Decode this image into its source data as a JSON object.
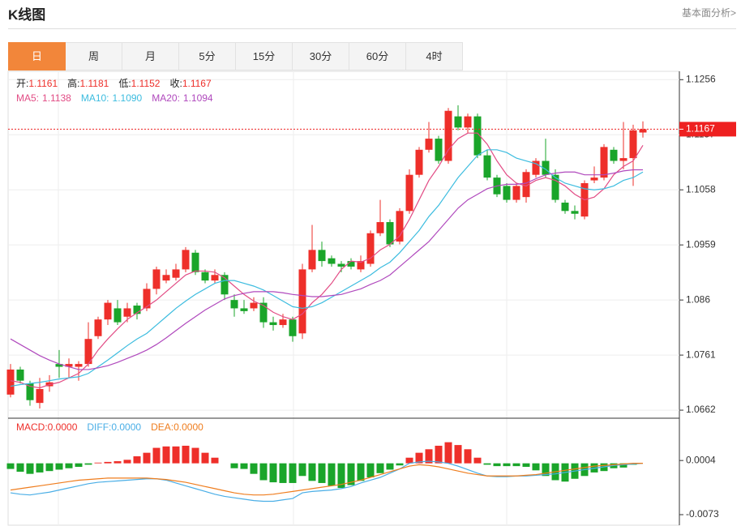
{
  "header": {
    "title": "K线图",
    "link": "基本面分析>"
  },
  "tabs": [
    "日",
    "周",
    "月",
    "5分",
    "15分",
    "30分",
    "60分",
    "4时"
  ],
  "active_tab": 0,
  "chart_data": [
    {
      "type": "candlestick",
      "info": [
        {
          "label": "开:",
          "value": "1.1161"
        },
        {
          "label": "高:",
          "value": "1.1181"
        },
        {
          "label": "低:",
          "value": "1.1152"
        },
        {
          "label": "收:",
          "value": "1.1167"
        }
      ],
      "up_color": "#ee2f2a",
      "down_color": "#1aa52a",
      "open": [
        1.069,
        1.0735,
        1.071,
        1.0675,
        1.0705,
        1.0745,
        1.074,
        1.074,
        1.0745,
        1.0795,
        1.0825,
        1.0845,
        1.083,
        1.085,
        1.0845,
        1.088,
        1.0895,
        1.09,
        1.0915,
        1.0945,
        1.091,
        1.0895,
        1.0905,
        1.086,
        1.0845,
        1.0845,
        1.0855,
        1.082,
        1.0815,
        1.0825,
        1.08,
        1.0915,
        1.095,
        1.0935,
        1.0925,
        1.093,
        1.0915,
        1.0925,
        1.098,
        1.1,
        1.0965,
        1.102,
        1.1085,
        1.113,
        1.115,
        1.111,
        1.119,
        1.117,
        1.119,
        1.112,
        1.108,
        1.1065,
        1.104,
        1.1045,
        1.1085,
        1.111,
        1.1085,
        1.1035,
        1.102,
        1.101,
        1.1075,
        1.108,
        1.113,
        1.111,
        1.1115,
        1.1161
      ],
      "close": [
        1.0735,
        1.0715,
        1.068,
        1.07,
        1.0712,
        1.074,
        1.0745,
        1.0745,
        1.079,
        1.0825,
        1.0855,
        1.082,
        1.0845,
        1.0835,
        1.088,
        1.0915,
        1.0905,
        1.0915,
        1.095,
        1.091,
        1.0895,
        1.0905,
        1.087,
        1.0845,
        1.084,
        1.0855,
        1.082,
        1.0815,
        1.0825,
        1.0795,
        1.0915,
        1.095,
        1.093,
        1.0925,
        1.092,
        1.092,
        1.093,
        1.098,
        1.1,
        1.096,
        1.102,
        1.1085,
        1.113,
        1.115,
        1.111,
        1.12,
        1.117,
        1.119,
        1.112,
        1.108,
        1.105,
        1.104,
        1.1065,
        1.109,
        1.111,
        1.1085,
        1.104,
        1.102,
        1.1015,
        1.107,
        1.108,
        1.1135,
        1.111,
        1.1115,
        1.1165,
        1.1167
      ],
      "high": [
        1.0745,
        1.074,
        1.0715,
        1.072,
        1.0725,
        1.077,
        1.0755,
        1.075,
        1.082,
        1.083,
        1.086,
        1.086,
        1.0855,
        1.0855,
        1.089,
        1.092,
        1.0915,
        1.0925,
        1.0955,
        1.095,
        1.0915,
        1.0915,
        1.091,
        1.087,
        1.086,
        1.0865,
        1.0865,
        1.083,
        1.0835,
        1.083,
        1.0925,
        1.0995,
        1.0965,
        1.094,
        1.093,
        1.0935,
        1.094,
        1.0985,
        1.104,
        1.1005,
        1.1025,
        1.1095,
        1.1135,
        1.118,
        1.1155,
        1.1205,
        1.121,
        1.1195,
        1.1195,
        1.113,
        1.1085,
        1.107,
        1.107,
        1.1095,
        1.1115,
        1.115,
        1.1095,
        1.104,
        1.103,
        1.1075,
        1.11,
        1.114,
        1.1135,
        1.118,
        1.1175,
        1.1181
      ],
      "low": [
        1.0685,
        1.071,
        1.067,
        1.0665,
        1.0695,
        1.072,
        1.072,
        1.0715,
        1.074,
        1.079,
        1.0815,
        1.0815,
        1.082,
        1.0825,
        1.084,
        1.087,
        1.089,
        1.0895,
        1.091,
        1.0905,
        1.089,
        1.089,
        1.086,
        1.083,
        1.0835,
        1.084,
        1.081,
        1.0805,
        1.081,
        1.0785,
        1.079,
        1.091,
        1.092,
        1.092,
        1.091,
        1.0915,
        1.091,
        1.092,
        1.0975,
        1.0955,
        1.096,
        1.1015,
        1.108,
        1.1125,
        1.1105,
        1.1105,
        1.1165,
        1.116,
        1.1115,
        1.1075,
        1.1045,
        1.1035,
        1.1035,
        1.1035,
        1.108,
        1.108,
        1.1035,
        1.1015,
        1.1005,
        1.1005,
        1.107,
        1.1075,
        1.1105,
        1.1095,
        1.1065,
        1.1152
      ],
      "series": [
        {
          "name": "MA5:",
          "legend_value": "1.1138",
          "color": "#e24c85",
          "values": [
            1.0715,
            1.0712,
            1.0705,
            1.0702,
            1.0708,
            1.0712,
            1.072,
            1.0728,
            1.0745,
            1.077,
            1.079,
            1.0808,
            1.0825,
            1.0837,
            1.0848,
            1.086,
            1.0875,
            1.089,
            1.0905,
            1.0912,
            1.0912,
            1.091,
            1.09,
            1.0885,
            1.087,
            1.0858,
            1.085,
            1.0838,
            1.083,
            1.0825,
            1.0835,
            1.0855,
            1.087,
            1.089,
            1.0915,
            1.093,
            1.0928,
            1.0935,
            1.095,
            1.096,
            1.0975,
            1.1005,
            1.104,
            1.1075,
            1.11,
            1.113,
            1.115,
            1.116,
            1.116,
            1.114,
            1.111,
            1.1085,
            1.107,
            1.1065,
            1.1075,
            1.108,
            1.1075,
            1.1065,
            1.105,
            1.104,
            1.1045,
            1.106,
            1.1085,
            1.11,
            1.111,
            1.1138
          ]
        },
        {
          "name": "MA10:",
          "legend_value": "1.1090",
          "color": "#3cbcdf",
          "values": [
            1.0705,
            1.0708,
            1.071,
            1.0712,
            1.0715,
            1.0718,
            1.072,
            1.0722,
            1.0728,
            1.074,
            1.0752,
            1.0765,
            1.0778,
            1.079,
            1.08,
            1.0815,
            1.083,
            1.0845,
            1.0858,
            1.087,
            1.088,
            1.089,
            1.0895,
            1.0895,
            1.089,
            1.0885,
            1.0878,
            1.0868,
            1.0858,
            1.0848,
            1.0845,
            1.0848,
            1.0855,
            1.0865,
            1.0875,
            1.0885,
            1.0895,
            1.0905,
            1.0918,
            1.0928,
            1.0945,
            1.0965,
            1.0985,
            1.101,
            1.103,
            1.1055,
            1.108,
            1.11,
            1.112,
            1.113,
            1.113,
            1.1125,
            1.1115,
            1.111,
            1.1105,
            1.1095,
            1.108,
            1.107,
            1.1065,
            1.106,
            1.1058,
            1.106,
            1.1065,
            1.1075,
            1.108,
            1.109
          ]
        },
        {
          "name": "MA20:",
          "legend_value": "1.1094",
          "color": "#b049bd",
          "values": [
            1.079,
            1.078,
            1.077,
            1.076,
            1.0752,
            1.0745,
            1.074,
            1.0735,
            1.0735,
            1.0738,
            1.0742,
            1.0748,
            1.0755,
            1.0762,
            1.077,
            1.078,
            1.0792,
            1.0805,
            1.0818,
            1.083,
            1.0842,
            1.0852,
            1.0862,
            1.0868,
            1.0872,
            1.0875,
            1.0875,
            1.0875,
            1.0873,
            1.087,
            1.0868,
            1.0866,
            1.0866,
            1.0868,
            1.087,
            1.0875,
            1.088,
            1.0888,
            1.0895,
            1.0905,
            1.092,
            1.0935,
            1.095,
            1.0965,
            1.0985,
            1.1005,
            1.1025,
            1.104,
            1.105,
            1.106,
            1.1065,
            1.1068,
            1.1068,
            1.107,
            1.1078,
            1.1085,
            1.1088,
            1.109,
            1.109,
            1.1085,
            1.1085,
            1.1085,
            1.1088,
            1.1092,
            1.1094,
            1.1094
          ]
        }
      ],
      "last_price": 1.1167,
      "last_price_color": "#ee2020",
      "ylim": [
        1.0649,
        1.1271
      ],
      "yticks": [
        1.1256,
        1.1157,
        1.1058,
        1.0959,
        1.086,
        1.0761,
        1.0662
      ],
      "grid": true
    },
    {
      "type": "macd",
      "up_color": "#ee2f2a",
      "down_color": "#1aa52a",
      "series": [
        {
          "name": "MACD:",
          "legend_value": "0.0000",
          "color": "#ee2f2a",
          "kind": "bar",
          "values": [
            -0.0008,
            -0.0012,
            -0.0015,
            -0.0013,
            -0.0011,
            -0.0009,
            -0.0007,
            -0.0005,
            -0.0002,
            0.0001,
            0.0002,
            0.0003,
            0.0005,
            0.001,
            0.0015,
            0.0022,
            0.0024,
            0.0024,
            0.0025,
            0.0022,
            0.0015,
            0.0008,
            0.0,
            -0.0007,
            -0.0008,
            -0.0015,
            -0.0024,
            -0.0027,
            -0.0028,
            -0.0028,
            -0.0018,
            -0.0025,
            -0.0028,
            -0.0032,
            -0.0035,
            -0.0031,
            -0.0025,
            -0.002,
            -0.0014,
            -0.0009,
            -0.0003,
            0.0008,
            0.0015,
            0.002,
            0.0025,
            0.003,
            0.0026,
            0.002,
            0.0008,
            -0.0002,
            -0.0004,
            -0.0004,
            -0.0004,
            -0.0005,
            -0.001,
            -0.0018,
            -0.0024,
            -0.0026,
            -0.0022,
            -0.0018,
            -0.0013,
            -0.0011,
            -0.0007,
            -0.0006,
            -0.0002,
            0.0
          ]
        },
        {
          "name": "DIFF:",
          "legend_value": "0.0000",
          "color": "#4aaee6",
          "kind": "line",
          "values": [
            -0.0042,
            -0.0044,
            -0.0045,
            -0.0043,
            -0.0041,
            -0.0038,
            -0.0035,
            -0.0032,
            -0.0029,
            -0.0027,
            -0.0026,
            -0.0025,
            -0.0024,
            -0.0023,
            -0.0022,
            -0.0022,
            -0.0024,
            -0.0028,
            -0.0032,
            -0.0036,
            -0.004,
            -0.0044,
            -0.0047,
            -0.0049,
            -0.0051,
            -0.0053,
            -0.0054,
            -0.0054,
            -0.0052,
            -0.005,
            -0.0042,
            -0.004,
            -0.0039,
            -0.0038,
            -0.0036,
            -0.0033,
            -0.0028,
            -0.0024,
            -0.002,
            -0.0014,
            -0.0008,
            0.0,
            0.0002,
            0.0003,
            0.0002,
            0.0,
            -0.0004,
            -0.0009,
            -0.0014,
            -0.0018,
            -0.0019,
            -0.0019,
            -0.0018,
            -0.0018,
            -0.0017,
            -0.0016,
            -0.0015,
            -0.0013,
            -0.0011,
            -0.0009,
            -0.0007,
            -0.0005,
            -0.0003,
            -0.0002,
            -0.0001,
            0.0
          ]
        },
        {
          "name": "DEA:",
          "legend_value": "0.0000",
          "color": "#ef7d1e",
          "kind": "line",
          "values": [
            -0.0038,
            -0.0036,
            -0.0034,
            -0.0032,
            -0.003,
            -0.0028,
            -0.0026,
            -0.0024,
            -0.0023,
            -0.0022,
            -0.0021,
            -0.0021,
            -0.0021,
            -0.0021,
            -0.0021,
            -0.0022,
            -0.0023,
            -0.0025,
            -0.0027,
            -0.003,
            -0.0033,
            -0.0036,
            -0.0039,
            -0.0042,
            -0.0044,
            -0.0045,
            -0.0045,
            -0.0044,
            -0.0042,
            -0.004,
            -0.0038,
            -0.0036,
            -0.0034,
            -0.0032,
            -0.003,
            -0.0027,
            -0.0024,
            -0.002,
            -0.0016,
            -0.0012,
            -0.0008,
            -0.0004,
            -0.0002,
            -0.0003,
            -0.0005,
            -0.0008,
            -0.0011,
            -0.0014,
            -0.0016,
            -0.0018,
            -0.0018,
            -0.0018,
            -0.0018,
            -0.0017,
            -0.0016,
            -0.0014,
            -0.0012,
            -0.001,
            -0.0008,
            -0.0006,
            -0.0004,
            -0.0003,
            -0.0002,
            -0.0001,
            0.0,
            0.0
          ]
        }
      ],
      "ylim": [
        -0.0088,
        0.0063
      ],
      "yticks": [
        0.0004,
        -0.0073
      ]
    }
  ]
}
